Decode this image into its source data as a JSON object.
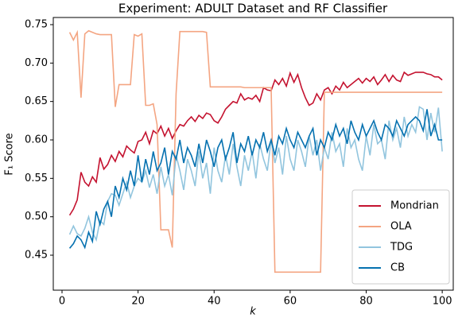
{
  "chart_data": {
    "type": "line",
    "title": "Experiment: ADULT Dataset and RF Classifier",
    "xlabel": "k",
    "ylabel": "F₁ Score",
    "x": [
      2,
      3,
      4,
      5,
      6,
      7,
      8,
      9,
      10,
      11,
      12,
      13,
      14,
      15,
      16,
      17,
      18,
      19,
      20,
      21,
      22,
      23,
      24,
      25,
      26,
      27,
      28,
      29,
      30,
      31,
      32,
      33,
      34,
      35,
      36,
      37,
      38,
      39,
      40,
      41,
      42,
      43,
      44,
      45,
      46,
      47,
      48,
      49,
      50,
      51,
      52,
      53,
      54,
      55,
      56,
      57,
      58,
      59,
      60,
      61,
      62,
      63,
      64,
      65,
      66,
      67,
      68,
      69,
      70,
      71,
      72,
      73,
      74,
      75,
      76,
      77,
      78,
      79,
      80,
      81,
      82,
      83,
      84,
      85,
      86,
      87,
      88,
      89,
      90,
      91,
      92,
      93,
      94,
      95,
      96,
      97,
      98,
      99,
      100
    ],
    "series": [
      {
        "name": "Mondrian",
        "color": "#c4122f",
        "values": [
          0.502,
          0.51,
          0.522,
          0.558,
          0.545,
          0.54,
          0.552,
          0.545,
          0.577,
          0.562,
          0.568,
          0.58,
          0.572,
          0.585,
          0.578,
          0.592,
          0.587,
          0.583,
          0.598,
          0.6,
          0.61,
          0.595,
          0.612,
          0.608,
          0.618,
          0.605,
          0.615,
          0.602,
          0.612,
          0.62,
          0.618,
          0.625,
          0.63,
          0.624,
          0.632,
          0.628,
          0.635,
          0.633,
          0.625,
          0.622,
          0.63,
          0.64,
          0.645,
          0.65,
          0.648,
          0.66,
          0.652,
          0.655,
          0.653,
          0.658,
          0.65,
          0.668,
          0.665,
          0.664,
          0.678,
          0.672,
          0.68,
          0.67,
          0.687,
          0.675,
          0.685,
          0.668,
          0.655,
          0.645,
          0.648,
          0.66,
          0.652,
          0.665,
          0.668,
          0.66,
          0.67,
          0.665,
          0.675,
          0.668,
          0.672,
          0.676,
          0.68,
          0.674,
          0.68,
          0.676,
          0.682,
          0.672,
          0.678,
          0.685,
          0.676,
          0.684,
          0.678,
          0.676,
          0.688,
          0.684,
          0.686,
          0.688,
          0.688,
          0.688,
          0.686,
          0.685,
          0.682,
          0.682,
          0.678
        ]
      },
      {
        "name": "OLA",
        "color": "#f4a582",
        "values": [
          0.74,
          0.73,
          0.74,
          0.655,
          0.738,
          0.742,
          0.74,
          0.738,
          0.737,
          0.737,
          0.737,
          0.737,
          0.643,
          0.672,
          0.672,
          0.672,
          0.672,
          0.737,
          0.735,
          0.738,
          0.645,
          0.645,
          0.647,
          0.62,
          0.483,
          0.483,
          0.483,
          0.46,
          0.66,
          0.741,
          0.741,
          0.741,
          0.741,
          0.741,
          0.741,
          0.741,
          0.74,
          0.669,
          0.669,
          0.669,
          0.669,
          0.669,
          0.669,
          0.669,
          0.669,
          0.669,
          0.668,
          0.668,
          0.668,
          0.668,
          0.668,
          0.668,
          0.668,
          0.668,
          0.428,
          0.428,
          0.428,
          0.428,
          0.428,
          0.428,
          0.428,
          0.428,
          0.428,
          0.428,
          0.428,
          0.428,
          0.428,
          0.662,
          0.662,
          0.662,
          0.662,
          0.662,
          0.662,
          0.662,
          0.662,
          0.662,
          0.662,
          0.662,
          0.662,
          0.662,
          0.662,
          0.662,
          0.662,
          0.662,
          0.662,
          0.662,
          0.662,
          0.662,
          0.662,
          0.662,
          0.662,
          0.662,
          0.662,
          0.662,
          0.662,
          0.662,
          0.662,
          0.662,
          0.662
        ]
      },
      {
        "name": "TDG",
        "color": "#92c5de",
        "values": [
          0.477,
          0.488,
          0.478,
          0.475,
          0.485,
          0.5,
          0.48,
          0.47,
          0.495,
          0.49,
          0.52,
          0.53,
          0.528,
          0.515,
          0.53,
          0.545,
          0.525,
          0.54,
          0.55,
          0.545,
          0.56,
          0.538,
          0.555,
          0.53,
          0.565,
          0.54,
          0.555,
          0.528,
          0.58,
          0.56,
          0.535,
          0.575,
          0.56,
          0.54,
          0.585,
          0.55,
          0.57,
          0.53,
          0.59,
          0.56,
          0.545,
          0.58,
          0.555,
          0.595,
          0.565,
          0.54,
          0.58,
          0.56,
          0.585,
          0.55,
          0.595,
          0.575,
          0.56,
          0.6,
          0.57,
          0.59,
          0.555,
          0.605,
          0.575,
          0.56,
          0.6,
          0.585,
          0.565,
          0.605,
          0.58,
          0.6,
          0.56,
          0.59,
          0.575,
          0.61,
          0.585,
          0.595,
          0.565,
          0.615,
          0.59,
          0.6,
          0.575,
          0.56,
          0.605,
          0.58,
          0.62,
          0.595,
          0.6,
          0.575,
          0.625,
          0.6,
          0.615,
          0.59,
          0.63,
          0.605,
          0.62,
          0.61,
          0.643,
          0.64,
          0.6,
          0.635,
          0.61,
          0.642,
          0.585
        ]
      },
      {
        "name": "CB",
        "color": "#0571b0",
        "values": [
          0.459,
          0.465,
          0.475,
          0.47,
          0.46,
          0.48,
          0.468,
          0.507,
          0.49,
          0.51,
          0.52,
          0.5,
          0.54,
          0.525,
          0.55,
          0.535,
          0.56,
          0.54,
          0.58,
          0.545,
          0.575,
          0.555,
          0.585,
          0.56,
          0.57,
          0.59,
          0.555,
          0.585,
          0.575,
          0.6,
          0.57,
          0.59,
          0.58,
          0.565,
          0.595,
          0.57,
          0.6,
          0.585,
          0.565,
          0.59,
          0.6,
          0.575,
          0.59,
          0.61,
          0.57,
          0.595,
          0.585,
          0.605,
          0.58,
          0.6,
          0.59,
          0.61,
          0.585,
          0.6,
          0.58,
          0.605,
          0.595,
          0.615,
          0.6,
          0.59,
          0.61,
          0.6,
          0.59,
          0.605,
          0.615,
          0.58,
          0.6,
          0.59,
          0.61,
          0.6,
          0.62,
          0.605,
          0.615,
          0.595,
          0.625,
          0.61,
          0.6,
          0.62,
          0.605,
          0.615,
          0.625,
          0.61,
          0.6,
          0.62,
          0.615,
          0.605,
          0.625,
          0.615,
          0.605,
          0.62,
          0.625,
          0.63,
          0.625,
          0.612,
          0.64,
          0.605,
          0.62,
          0.6,
          0.6
        ]
      }
    ],
    "xlim": [
      -2.3,
      102.9
    ],
    "xticks": [
      0,
      20,
      40,
      60,
      80,
      100
    ],
    "ylim": [
      0.4045,
      0.7593
    ],
    "yticks": [
      0.45,
      {
        "value": 0.5,
        "label": "0.50"
      },
      0.55,
      {
        "value": 0.6,
        "label": "0.60"
      },
      0.65,
      {
        "value": 0.7,
        "label": "0.70"
      },
      0.75
    ],
    "legend": "lower right"
  }
}
